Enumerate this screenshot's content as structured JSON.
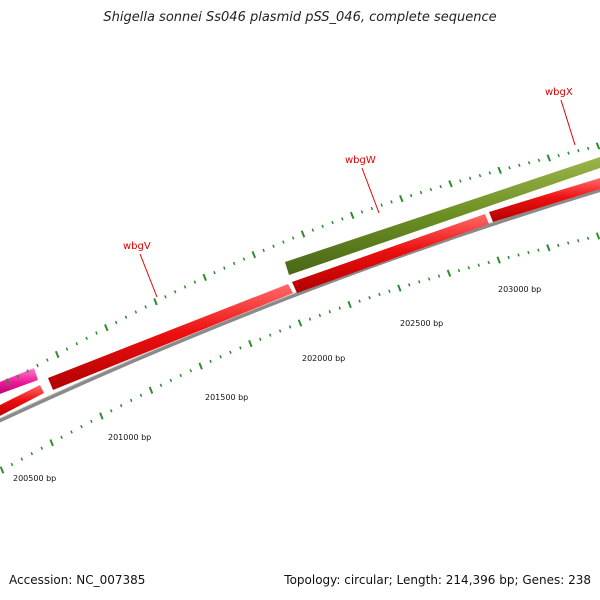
{
  "title": "Shigella sonnei Ss046 plasmid pSS_046, complete sequence",
  "footer": {
    "accession": "Accession: NC_007385",
    "summary": "Topology: circular; Length: 214,396 bp; Genes: 238"
  },
  "colors": {
    "forward_gene": "#e81010",
    "highlight_gene": "#6b8e23",
    "magenta_gene": "#ee1a9a",
    "backbone": "#8a8a8a",
    "ticks": "#2e8b2e",
    "gene_label": "#e00000"
  },
  "genes": [
    {
      "name": "wbgV"
    },
    {
      "name": "wbgW"
    },
    {
      "name": "wbgX"
    }
  ],
  "position_labels": [
    "200500 bp",
    "201000 bp",
    "201500 bp",
    "202000 bp",
    "202500 bp",
    "203000 bp"
  ]
}
